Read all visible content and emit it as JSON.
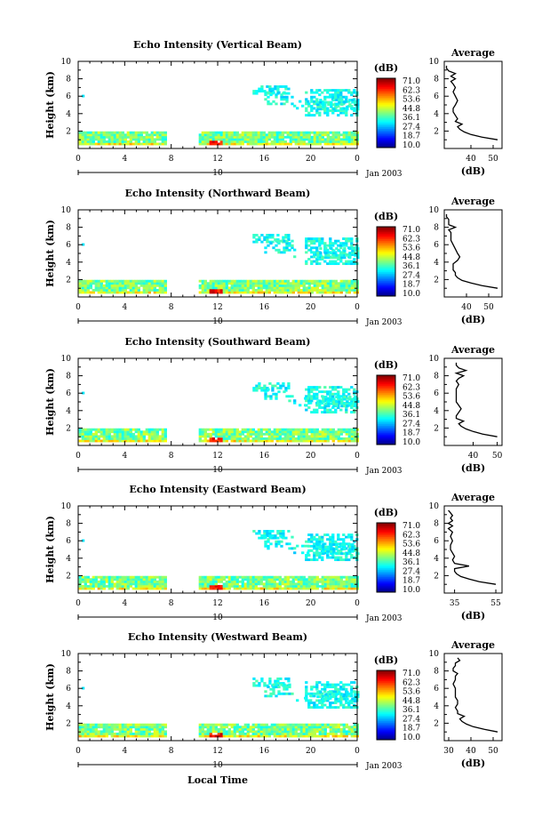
{
  "chart_data": [
    {
      "type": "heatmap",
      "title": "Echo Intensity (Vertical Beam)",
      "ylabel": "Height (km)",
      "xlabel": "",
      "x_ticks": [
        "0",
        "4",
        "8",
        "12",
        "16",
        "20",
        "0"
      ],
      "y_ticks": [
        "2",
        "4",
        "6",
        "8",
        "10"
      ],
      "date_marker": "10",
      "date_label": "Jan 2003",
      "xlim": [
        0,
        24
      ],
      "ylim": [
        0,
        10
      ],
      "colorbar": {
        "unit": "(dB)",
        "ticks": [
          "71.0",
          "62.3",
          "53.6",
          "44.8",
          "36.1",
          "27.4",
          "18.7",
          "10.0"
        ],
        "range": [
          10.0,
          71.0
        ]
      },
      "average_profile": {
        "title": "Average",
        "xlabel": "(dB)",
        "x_ticks": [
          "40",
          "50"
        ],
        "xlim": [
          28,
          54
        ],
        "y_ticks": [
          "2",
          "4",
          "6",
          "8",
          "10"
        ],
        "points": [
          [
            1,
            52
          ],
          [
            1.3,
            45
          ],
          [
            1.6,
            40
          ],
          [
            1.9,
            37
          ],
          [
            2.2,
            35
          ],
          [
            2.5,
            34
          ],
          [
            2.8,
            36
          ],
          [
            3.1,
            33
          ],
          [
            3.4,
            34
          ],
          [
            3.8,
            33
          ],
          [
            4.2,
            32
          ],
          [
            4.6,
            32
          ],
          [
            5,
            33
          ],
          [
            5.5,
            34
          ],
          [
            6,
            33
          ],
          [
            6.5,
            32
          ],
          [
            7,
            33
          ],
          [
            7.4,
            32
          ],
          [
            7.7,
            31
          ],
          [
            8,
            33
          ],
          [
            8.3,
            31
          ],
          [
            8.6,
            33
          ],
          [
            8.9,
            30
          ],
          [
            9.2,
            29
          ],
          [
            9.5,
            29
          ]
        ]
      }
    },
    {
      "type": "heatmap",
      "title": "Echo Intensity (Northward Beam)",
      "ylabel": "Height (km)",
      "xlabel": "",
      "x_ticks": [
        "0",
        "4",
        "8",
        "12",
        "16",
        "20",
        "0"
      ],
      "y_ticks": [
        "2",
        "4",
        "6",
        "8",
        "10"
      ],
      "date_marker": "10",
      "date_label": "Jan 2003",
      "xlim": [
        0,
        24
      ],
      "ylim": [
        0,
        10
      ],
      "colorbar": {
        "unit": "(dB)",
        "ticks": [
          "71.0",
          "62.3",
          "53.6",
          "44.8",
          "36.1",
          "27.4",
          "18.7",
          "10.0"
        ],
        "range": [
          10.0,
          71.0
        ]
      },
      "average_profile": {
        "title": "Average",
        "xlabel": "(dB)",
        "x_ticks": [
          "40",
          "50"
        ],
        "xlim": [
          30,
          56
        ],
        "y_ticks": [
          "2",
          "4",
          "6",
          "8",
          "10"
        ],
        "points": [
          [
            1,
            54
          ],
          [
            1.3,
            47
          ],
          [
            1.6,
            42
          ],
          [
            1.9,
            38
          ],
          [
            2.2,
            36
          ],
          [
            2.5,
            35
          ],
          [
            2.8,
            35
          ],
          [
            3.1,
            34
          ],
          [
            3.4,
            34
          ],
          [
            3.8,
            34
          ],
          [
            4.2,
            36
          ],
          [
            4.6,
            37
          ],
          [
            5,
            36
          ],
          [
            5.5,
            35
          ],
          [
            6,
            34
          ],
          [
            6.5,
            33
          ],
          [
            7,
            33
          ],
          [
            7.4,
            33
          ],
          [
            7.7,
            32
          ],
          [
            8,
            35
          ],
          [
            8.3,
            32
          ],
          [
            8.6,
            32
          ],
          [
            8.9,
            32
          ],
          [
            9.2,
            31
          ],
          [
            9.5,
            31
          ]
        ]
      }
    },
    {
      "type": "heatmap",
      "title": "Echo Intensity (Southward Beam)",
      "ylabel": "Height (km)",
      "xlabel": "",
      "x_ticks": [
        "0",
        "4",
        "8",
        "12",
        "16",
        "20",
        "0"
      ],
      "y_ticks": [
        "2",
        "4",
        "6",
        "8",
        "10"
      ],
      "date_marker": "10",
      "date_label": "Jan 2003",
      "xlim": [
        0,
        24
      ],
      "ylim": [
        0,
        10
      ],
      "colorbar": {
        "unit": "(dB)",
        "ticks": [
          "71.0",
          "62.3",
          "53.6",
          "44.8",
          "36.1",
          "27.4",
          "18.7",
          "10.0"
        ],
        "range": [
          10.0,
          71.0
        ]
      },
      "average_profile": {
        "title": "Average",
        "xlabel": "(dB)",
        "x_ticks": [
          "40",
          "50"
        ],
        "xlim": [
          28,
          52
        ],
        "y_ticks": [
          "2",
          "4",
          "6",
          "8",
          "10"
        ],
        "points": [
          [
            1,
            50
          ],
          [
            1.3,
            44
          ],
          [
            1.6,
            40
          ],
          [
            1.9,
            37
          ],
          [
            2.2,
            35
          ],
          [
            2.5,
            34
          ],
          [
            2.8,
            36
          ],
          [
            3.1,
            33
          ],
          [
            3.4,
            33
          ],
          [
            3.8,
            34
          ],
          [
            4.2,
            35
          ],
          [
            4.6,
            34
          ],
          [
            5,
            33
          ],
          [
            5.5,
            33
          ],
          [
            6,
            33
          ],
          [
            6.5,
            33
          ],
          [
            7,
            34
          ],
          [
            7.4,
            33
          ],
          [
            7.7,
            34
          ],
          [
            8,
            36
          ],
          [
            8.3,
            33
          ],
          [
            8.6,
            37
          ],
          [
            8.9,
            34
          ],
          [
            9.2,
            33
          ],
          [
            9.5,
            33
          ]
        ]
      }
    },
    {
      "type": "heatmap",
      "title": "Echo Intensity (Eastward Beam)",
      "ylabel": "Height (km)",
      "xlabel": "",
      "x_ticks": [
        "0",
        "4",
        "8",
        "12",
        "16",
        "20",
        "0"
      ],
      "y_ticks": [
        "2",
        "4",
        "6",
        "8",
        "10"
      ],
      "date_marker": "10",
      "date_label": "Jan 2003",
      "xlim": [
        0,
        24
      ],
      "ylim": [
        0,
        10
      ],
      "colorbar": {
        "unit": "(dB)",
        "ticks": [
          "71.0",
          "62.3",
          "53.6",
          "44.8",
          "36.1",
          "27.4",
          "18.7",
          "10.0"
        ],
        "range": [
          10.0,
          71.0
        ]
      },
      "average_profile": {
        "title": "Average",
        "xlabel": "(dB)",
        "x_ticks": [
          "35",
          "55"
        ],
        "xlim": [
          30,
          58
        ],
        "y_ticks": [
          "2",
          "4",
          "6",
          "8",
          "10"
        ],
        "points": [
          [
            1,
            55
          ],
          [
            1.3,
            47
          ],
          [
            1.6,
            42
          ],
          [
            1.9,
            38
          ],
          [
            2.2,
            36
          ],
          [
            2.5,
            35
          ],
          [
            2.8,
            35
          ],
          [
            3.1,
            42
          ],
          [
            3.4,
            35
          ],
          [
            3.8,
            34
          ],
          [
            4.2,
            35
          ],
          [
            4.6,
            34
          ],
          [
            5,
            33
          ],
          [
            5.5,
            33
          ],
          [
            6,
            34
          ],
          [
            6.5,
            33
          ],
          [
            7,
            34
          ],
          [
            7.4,
            32
          ],
          [
            7.7,
            34
          ],
          [
            8,
            32
          ],
          [
            8.3,
            34
          ],
          [
            8.6,
            33
          ],
          [
            8.9,
            34
          ],
          [
            9.2,
            33
          ],
          [
            9.5,
            32
          ]
        ]
      }
    },
    {
      "type": "heatmap",
      "title": "Echo Intensity (Westward Beam)",
      "ylabel": "Height (km)",
      "xlabel": "Local Time",
      "x_ticks": [
        "0",
        "4",
        "8",
        "12",
        "16",
        "20",
        "0"
      ],
      "y_ticks": [
        "2",
        "4",
        "6",
        "8",
        "10"
      ],
      "date_marker": "10",
      "date_label": "Jan 2003",
      "xlim": [
        0,
        24
      ],
      "ylim": [
        0,
        10
      ],
      "colorbar": {
        "unit": "(dB)",
        "ticks": [
          "71.0",
          "62.3",
          "53.6",
          "44.8",
          "36.1",
          "27.4",
          "18.7",
          "10.0"
        ],
        "range": [
          10.0,
          71.0
        ]
      },
      "average_profile": {
        "title": "Average",
        "xlabel": "(dB)",
        "x_ticks": [
          "30",
          "40",
          "50"
        ],
        "xlim": [
          28,
          54
        ],
        "y_ticks": [
          "2",
          "4",
          "6",
          "8",
          "10"
        ],
        "points": [
          [
            1,
            52
          ],
          [
            1.3,
            46
          ],
          [
            1.6,
            41
          ],
          [
            1.9,
            38
          ],
          [
            2.2,
            36
          ],
          [
            2.5,
            35
          ],
          [
            2.8,
            37
          ],
          [
            3.1,
            34
          ],
          [
            3.4,
            34
          ],
          [
            3.8,
            33
          ],
          [
            4.2,
            34
          ],
          [
            4.6,
            34
          ],
          [
            5,
            33
          ],
          [
            5.5,
            33
          ],
          [
            6,
            33
          ],
          [
            6.5,
            32
          ],
          [
            7,
            33
          ],
          [
            7.4,
            33
          ],
          [
            7.7,
            34
          ],
          [
            8,
            32
          ],
          [
            8.3,
            32
          ],
          [
            8.6,
            33
          ],
          [
            8.9,
            33
          ],
          [
            9.2,
            35
          ],
          [
            9.5,
            34
          ]
        ]
      }
    }
  ]
}
